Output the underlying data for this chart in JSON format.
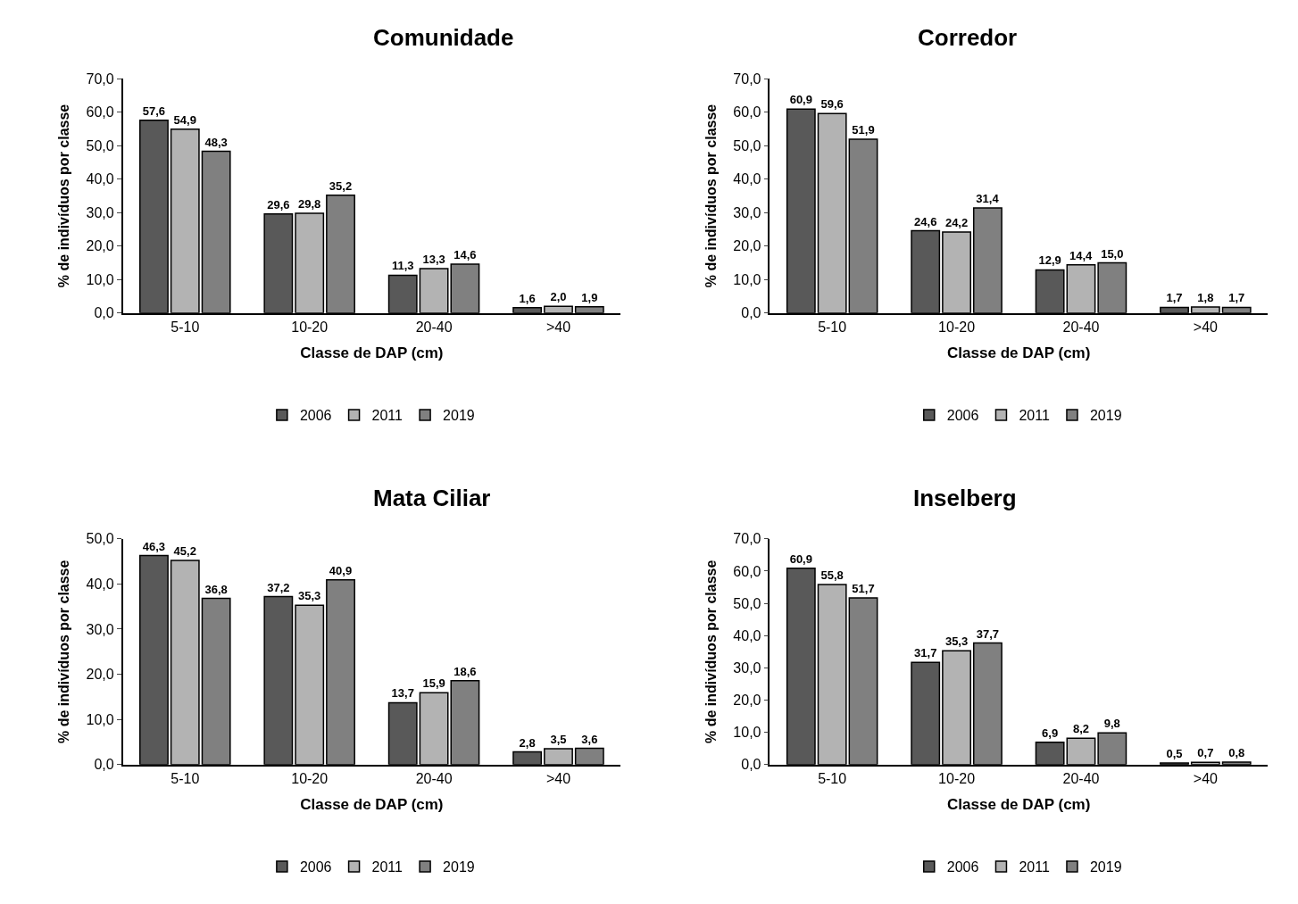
{
  "chart_data": [
    {
      "type": "bar",
      "title": "Comunidade",
      "xlabel": "Classe de DAP (cm)",
      "ylabel": "% de indivíduos por classe",
      "categories": [
        "5-10",
        "10-20",
        "20-40",
        ">40"
      ],
      "ylim": [
        0,
        70
      ],
      "yticks": [
        {
          "value": 0,
          "label": "0,0"
        },
        {
          "value": 10,
          "label": "10,0"
        },
        {
          "value": 20,
          "label": "20,0"
        },
        {
          "value": 30,
          "label": "30,0"
        },
        {
          "value": 40,
          "label": "40,0"
        },
        {
          "value": 50,
          "label": "50,0"
        },
        {
          "value": 60,
          "label": "60,0"
        },
        {
          "value": 70,
          "label": "70,0"
        }
      ],
      "legend": "bottom",
      "series": [
        {
          "name": "2006",
          "color": "#595959",
          "values": [
            57.6,
            29.6,
            11.3,
            1.6
          ],
          "value_labels": [
            "57,6",
            "29,6",
            "11,3",
            "1,6"
          ]
        },
        {
          "name": "2011",
          "color": "#b3b3b3",
          "values": [
            54.9,
            29.8,
            13.3,
            2.0
          ],
          "value_labels": [
            "54,9",
            "29,8",
            "13,3",
            "2,0"
          ]
        },
        {
          "name": "2019",
          "color": "#808080",
          "values": [
            48.3,
            35.2,
            14.6,
            1.9
          ],
          "value_labels": [
            "48,3",
            "35,2",
            "14,6",
            "1,9"
          ]
        }
      ]
    },
    {
      "type": "bar",
      "title": "Corredor",
      "xlabel": "Classe de DAP (cm)",
      "ylabel": "% de indivíduos por classe",
      "categories": [
        "5-10",
        "10-20",
        "20-40",
        ">40"
      ],
      "ylim": [
        0,
        70
      ],
      "yticks": [
        {
          "value": 0,
          "label": "0,0"
        },
        {
          "value": 10,
          "label": "10,0"
        },
        {
          "value": 20,
          "label": "20,0"
        },
        {
          "value": 30,
          "label": "30,0"
        },
        {
          "value": 40,
          "label": "40,0"
        },
        {
          "value": 50,
          "label": "50,0"
        },
        {
          "value": 60,
          "label": "60,0"
        },
        {
          "value": 70,
          "label": "70,0"
        }
      ],
      "legend": "bottom",
      "series": [
        {
          "name": "2006",
          "color": "#595959",
          "values": [
            60.9,
            24.6,
            12.9,
            1.7
          ],
          "value_labels": [
            "60,9",
            "24,6",
            "12,9",
            "1,7"
          ]
        },
        {
          "name": "2011",
          "color": "#b3b3b3",
          "values": [
            59.6,
            24.2,
            14.4,
            1.8
          ],
          "value_labels": [
            "59,6",
            "24,2",
            "14,4",
            "1,8"
          ]
        },
        {
          "name": "2019",
          "color": "#808080",
          "values": [
            51.9,
            31.4,
            15.0,
            1.7
          ],
          "value_labels": [
            "51,9",
            "31,4",
            "15,0",
            "1,7"
          ]
        }
      ]
    },
    {
      "type": "bar",
      "title": "Mata Ciliar",
      "xlabel": "Classe de DAP (cm)",
      "ylabel": "% de indivíduos por classe",
      "categories": [
        "5-10",
        "10-20",
        "20-40",
        ">40"
      ],
      "ylim": [
        0,
        50
      ],
      "yticks": [
        {
          "value": 0,
          "label": "0,0"
        },
        {
          "value": 10,
          "label": "10,0"
        },
        {
          "value": 20,
          "label": "20,0"
        },
        {
          "value": 30,
          "label": "30,0"
        },
        {
          "value": 40,
          "label": "40,0"
        },
        {
          "value": 50,
          "label": "50,0"
        }
      ],
      "legend": "bottom",
      "series": [
        {
          "name": "2006",
          "color": "#595959",
          "values": [
            46.3,
            37.2,
            13.7,
            2.8
          ],
          "value_labels": [
            "46,3",
            "37,2",
            "13,7",
            "2,8"
          ]
        },
        {
          "name": "2011",
          "color": "#b3b3b3",
          "values": [
            45.2,
            35.3,
            15.9,
            3.5
          ],
          "value_labels": [
            "45,2",
            "35,3",
            "15,9",
            "3,5"
          ]
        },
        {
          "name": "2019",
          "color": "#808080",
          "values": [
            36.8,
            40.9,
            18.6,
            3.6
          ],
          "value_labels": [
            "36,8",
            "40,9",
            "18,6",
            "3,6"
          ]
        }
      ]
    },
    {
      "type": "bar",
      "title": "Inselberg",
      "xlabel": "Classe de DAP (cm)",
      "ylabel": "% de indivíduos por classe",
      "categories": [
        "5-10",
        "10-20",
        "20-40",
        ">40"
      ],
      "ylim": [
        0,
        70
      ],
      "yticks": [
        {
          "value": 0,
          "label": "0,0"
        },
        {
          "value": 10,
          "label": "10,0"
        },
        {
          "value": 20,
          "label": "20,0"
        },
        {
          "value": 30,
          "label": "30,0"
        },
        {
          "value": 40,
          "label": "40,0"
        },
        {
          "value": 50,
          "label": "50,0"
        },
        {
          "value": 60,
          "label": "60,0"
        },
        {
          "value": 70,
          "label": "70,0"
        }
      ],
      "legend": "bottom",
      "series": [
        {
          "name": "2006",
          "color": "#595959",
          "values": [
            60.9,
            31.7,
            6.9,
            0.5
          ],
          "value_labels": [
            "60,9",
            "31,7",
            "6,9",
            "0,5"
          ]
        },
        {
          "name": "2011",
          "color": "#b3b3b3",
          "values": [
            55.8,
            35.3,
            8.2,
            0.7
          ],
          "value_labels": [
            "55,8",
            "35,3",
            "8,2",
            "0,7"
          ]
        },
        {
          "name": "2019",
          "color": "#808080",
          "values": [
            51.7,
            37.7,
            9.8,
            0.8
          ],
          "value_labels": [
            "51,7",
            "37,7",
            "9,8",
            "0,8"
          ]
        }
      ]
    }
  ]
}
